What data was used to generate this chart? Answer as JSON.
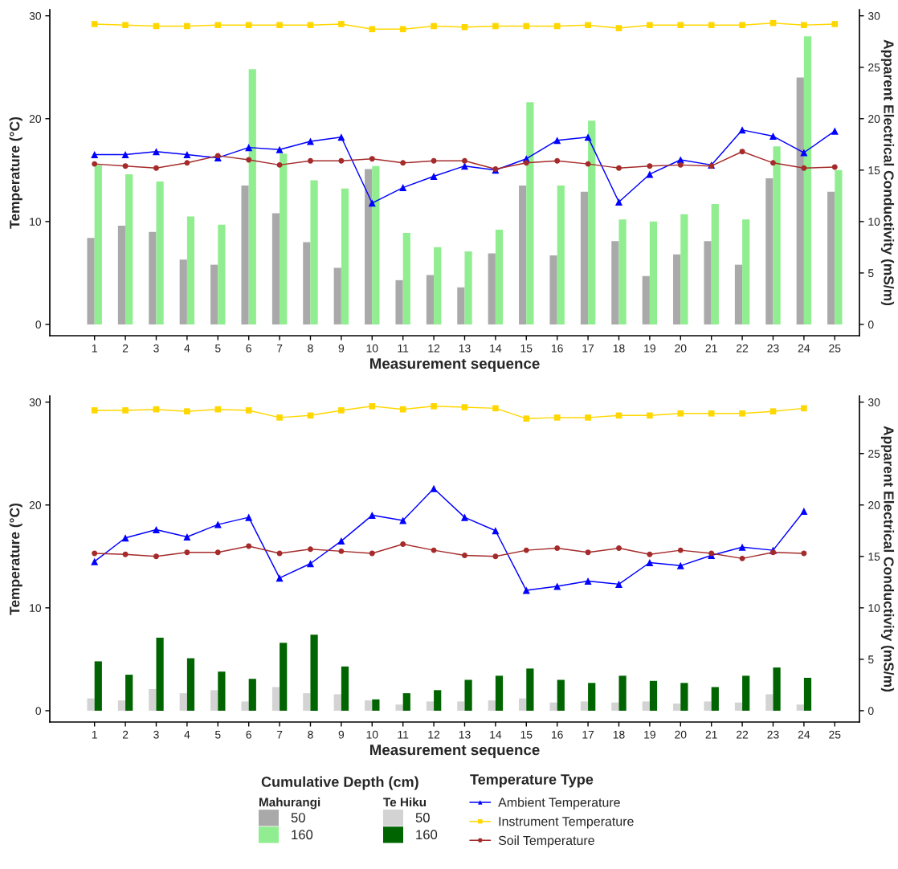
{
  "chart_data": [
    {
      "type": "bar",
      "categories": [
        "1",
        "2",
        "3",
        "4",
        "5",
        "6",
        "7",
        "8",
        "9",
        "10",
        "11",
        "12",
        "13",
        "14",
        "15",
        "16",
        "17",
        "18",
        "19",
        "20",
        "21",
        "22",
        "23",
        "24",
        "25"
      ],
      "xlabel": "Measurement sequence",
      "ylabel": "Temperature (°C)",
      "y2label": "Apparent Electrical Conductivity (mS/m)",
      "ylim": [
        -1.1,
        30.6
      ],
      "yticks": [
        0,
        10,
        20,
        30
      ],
      "y2lim": [
        -1.1,
        30.6
      ],
      "y2ticks": [
        0,
        5,
        10,
        15,
        20,
        25,
        30
      ],
      "legend": "bottom",
      "legend_title": "Mahurangi",
      "series": [
        {
          "name": "50",
          "axis": "y2",
          "color": "#a9a9a9",
          "values": [
            8.4,
            9.6,
            9.0,
            6.3,
            5.8,
            13.5,
            10.8,
            8.0,
            5.5,
            15.1,
            4.3,
            4.8,
            3.6,
            6.9,
            13.5,
            6.7,
            12.9,
            8.1,
            4.7,
            6.8,
            8.1,
            5.8,
            14.2,
            24.0,
            12.9
          ]
        },
        {
          "name": "160",
          "axis": "y2",
          "color": "#90ee90",
          "values": [
            15.5,
            14.6,
            13.9,
            10.5,
            9.7,
            24.8,
            16.6,
            14.0,
            13.2,
            15.4,
            8.9,
            7.5,
            7.1,
            9.2,
            21.6,
            13.5,
            19.8,
            10.2,
            10.0,
            10.7,
            11.7,
            10.2,
            17.3,
            28.0,
            15.0
          ]
        },
        {
          "name": "Ambient Temperature",
          "type": "line",
          "color": "#0000ff",
          "marker": "triangle",
          "values": [
            16.5,
            16.5,
            16.8,
            16.5,
            16.2,
            17.2,
            17.0,
            17.8,
            18.2,
            11.8,
            13.3,
            14.4,
            15.4,
            15.0,
            16.1,
            17.9,
            18.2,
            11.9,
            14.6,
            16.0,
            15.5,
            18.9,
            18.3,
            16.7,
            18.8
          ]
        },
        {
          "name": "Instrument Temperature",
          "type": "line",
          "color": "#ffd700",
          "marker": "square",
          "values": [
            29.2,
            29.1,
            29.0,
            29.0,
            29.1,
            29.1,
            29.1,
            29.1,
            29.2,
            28.7,
            28.7,
            29.0,
            28.9,
            29.0,
            29.0,
            29.0,
            29.1,
            28.8,
            29.1,
            29.1,
            29.1,
            29.1,
            29.3,
            29.1,
            29.2
          ]
        },
        {
          "name": "Soil Temperature",
          "type": "line",
          "color": "#a52a2a",
          "marker": "circle",
          "values": [
            15.6,
            15.4,
            15.2,
            15.7,
            16.4,
            16.0,
            15.5,
            15.9,
            15.9,
            16.1,
            15.7,
            15.9,
            15.9,
            15.1,
            15.7,
            15.9,
            15.6,
            15.2,
            15.4,
            15.5,
            15.4,
            16.8,
            15.7,
            15.2,
            15.3
          ]
        }
      ]
    },
    {
      "type": "bar",
      "categories": [
        "1",
        "2",
        "3",
        "4",
        "5",
        "6",
        "7",
        "8",
        "9",
        "10",
        "11",
        "12",
        "13",
        "14",
        "15",
        "16",
        "17",
        "18",
        "19",
        "20",
        "21",
        "22",
        "23",
        "24",
        "25"
      ],
      "xlabel": "Measurement sequence",
      "ylabel": "Temperature (°C)",
      "y2label": "Apparent Electrical Conductivity (mS/m)",
      "ylim": [
        -1.1,
        30.6
      ],
      "yticks": [
        0,
        10,
        20,
        30
      ],
      "y2lim": [
        -1.1,
        30.6
      ],
      "y2ticks": [
        0,
        5,
        10,
        15,
        20,
        25,
        30
      ],
      "legend": "bottom",
      "legend_title": "Te Hiku",
      "annotations": [
        "Cumulative Depth (cm)",
        "Temperature Type"
      ],
      "series": [
        {
          "name": "50",
          "axis": "y2",
          "color": "#d3d3d3",
          "values": [
            1.2,
            1.0,
            2.1,
            1.7,
            2.0,
            0.9,
            2.3,
            1.7,
            1.6,
            1.0,
            0.6,
            0.9,
            0.9,
            1.0,
            1.2,
            0.8,
            0.9,
            0.8,
            0.9,
            0.7,
            0.9,
            0.8,
            1.6,
            0.6,
            null
          ]
        },
        {
          "name": "160",
          "axis": "y2",
          "color": "#006400",
          "values": [
            4.8,
            3.5,
            7.1,
            5.1,
            3.8,
            3.1,
            6.6,
            7.4,
            4.3,
            1.1,
            1.7,
            2.0,
            3.0,
            3.4,
            4.1,
            3.0,
            2.7,
            3.4,
            2.9,
            2.7,
            2.3,
            3.4,
            4.2,
            3.2,
            null
          ]
        },
        {
          "name": "Ambient Temperature",
          "type": "line",
          "color": "#0000ff",
          "marker": "triangle",
          "values": [
            14.5,
            16.8,
            17.6,
            16.9,
            18.1,
            18.8,
            12.9,
            14.3,
            16.5,
            19.0,
            18.5,
            21.6,
            18.8,
            17.5,
            11.7,
            12.1,
            12.6,
            12.3,
            14.4,
            14.1,
            15.1,
            15.9,
            15.6,
            19.4,
            null
          ]
        },
        {
          "name": "Instrument Temperature",
          "type": "line",
          "color": "#ffd700",
          "marker": "square",
          "values": [
            29.2,
            29.2,
            29.3,
            29.1,
            29.3,
            29.2,
            28.5,
            28.7,
            29.2,
            29.6,
            29.3,
            29.6,
            29.5,
            29.4,
            28.4,
            28.5,
            28.5,
            28.7,
            28.7,
            28.9,
            28.9,
            28.9,
            29.1,
            29.4,
            null
          ]
        },
        {
          "name": "Soil Temperature",
          "type": "line",
          "color": "#a52a2a",
          "marker": "circle",
          "values": [
            15.3,
            15.2,
            15.0,
            15.4,
            15.4,
            16.0,
            15.3,
            15.7,
            15.5,
            15.3,
            16.2,
            15.6,
            15.1,
            15.0,
            15.6,
            15.8,
            15.4,
            15.8,
            15.2,
            15.6,
            15.3,
            14.8,
            15.4,
            15.3,
            null
          ]
        }
      ]
    }
  ]
}
